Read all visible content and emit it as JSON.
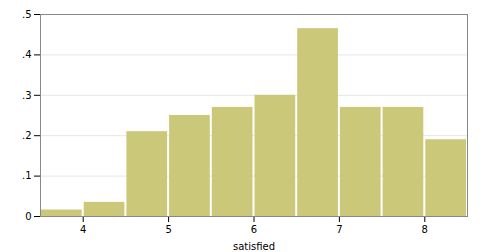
{
  "chart_data": {
    "type": "histogram",
    "xlabel": "satisfied",
    "bins": [
      3.5,
      4.0,
      4.5,
      5.0,
      5.5,
      6.0,
      6.5,
      7.0,
      7.5,
      8.0,
      8.5
    ],
    "values": [
      0.016,
      0.035,
      0.21,
      0.25,
      0.27,
      0.3,
      0.465,
      0.27,
      0.27,
      0.19
    ],
    "color": "#ccc87a",
    "xlim": [
      3.5,
      8.5
    ],
    "xticks": [
      4,
      5,
      6,
      7,
      8
    ],
    "ylim": [
      0,
      0.5
    ],
    "yticks": [
      0,
      {
        "value": 0.1,
        "label": ".1"
      },
      {
        "value": 0.2,
        "label": ".2"
      },
      {
        "value": 0.3,
        "label": ".3"
      },
      {
        "value": 0.4,
        "label": ".4"
      },
      {
        "value": 0.5,
        "label": ".5"
      }
    ],
    "grid": true
  }
}
